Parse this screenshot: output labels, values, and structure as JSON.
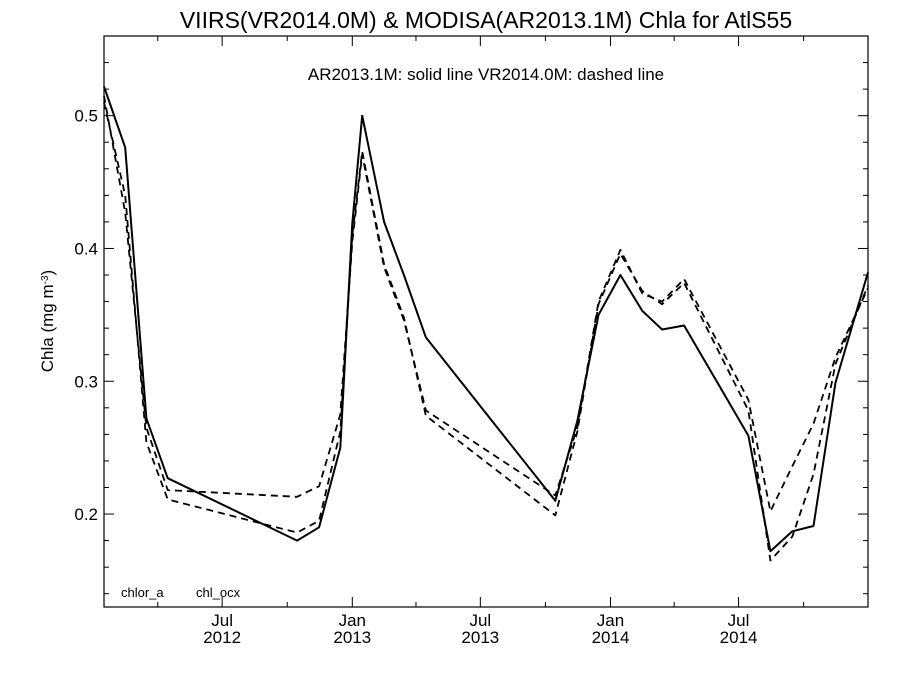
{
  "chart_data": {
    "type": "line",
    "title": "VIIRS(VR2014.0M) & MODISA(AR2013.1M)  Chla for AtlS55",
    "subtitle": "AR2013.1M: solid line   VR2014.0M: dashed line",
    "ylabel": "Chla (mg m",
    "ylabel_sup": "-3",
    "ylabel_close": ")",
    "xlim": [
      "2012-01-16",
      "2014-12-31"
    ],
    "ylim": [
      0.13,
      0.56
    ],
    "y_ticks": [
      0.2,
      0.3,
      0.4,
      0.5
    ],
    "y_tick_labels": [
      "0.2",
      "0.3",
      "0.4",
      "0.5"
    ],
    "x_major_ticks": [
      {
        "date": "2012-07-01",
        "month": "Jul",
        "year": "2012"
      },
      {
        "date": "2013-01-01",
        "month": "Jan",
        "year": "2013"
      },
      {
        "date": "2013-07-01",
        "month": "Jul",
        "year": "2013"
      },
      {
        "date": "2014-01-01",
        "month": "Jan",
        "year": "2014"
      },
      {
        "date": "2014-07-01",
        "month": "Jul",
        "year": "2014"
      }
    ],
    "x_minor_ticks": [
      "2012-04-01",
      "2012-10-01",
      "2013-04-01",
      "2013-10-01",
      "2014-04-01",
      "2014-10-01"
    ],
    "footnotes": [
      "chlor_a",
      "chl_ocx"
    ],
    "series": [
      {
        "line": "solid",
        "x": [
          "2012-01-16",
          "2012-02-15",
          "2012-03-16",
          "2012-04-15",
          "2012-10-15",
          "2012-11-15",
          "2012-12-15",
          "2013-01-01",
          "2013-01-15",
          "2013-02-15",
          "2013-03-15",
          "2013-04-15",
          "2013-10-15",
          "2013-11-15",
          "2013-12-15",
          "2014-01-15",
          "2014-02-15",
          "2014-03-15",
          "2014-04-15",
          "2014-07-15",
          "2014-08-15",
          "2014-09-15",
          "2014-10-15",
          "2014-11-15",
          "2014-12-31"
        ],
        "values": [
          0.522,
          0.476,
          0.272,
          0.227,
          0.18,
          0.19,
          0.25,
          0.419,
          0.5,
          0.42,
          0.38,
          0.333,
          0.21,
          0.27,
          0.35,
          0.38,
          0.353,
          0.339,
          0.342,
          0.259,
          0.172,
          0.187,
          0.191,
          0.299,
          0.382
        ]
      },
      {
        "line": "dashed",
        "x": [
          "2012-01-16",
          "2012-02-15",
          "2012-03-16",
          "2012-04-15",
          "2012-10-15",
          "2012-11-15",
          "2012-12-15",
          "2013-01-01",
          "2013-01-15",
          "2013-02-15",
          "2013-03-15",
          "2013-04-15",
          "2013-10-15",
          "2013-11-15",
          "2013-12-15",
          "2014-01-15",
          "2014-02-15",
          "2014-03-15",
          "2014-04-15",
          "2014-07-15",
          "2014-08-15",
          "2014-09-15",
          "2014-10-15",
          "2014-11-15",
          "2014-12-31"
        ],
        "values": [
          0.515,
          0.427,
          0.265,
          0.218,
          0.213,
          0.221,
          0.275,
          0.405,
          0.471,
          0.386,
          0.346,
          0.278,
          0.214,
          0.265,
          0.36,
          0.399,
          0.366,
          0.36,
          0.377,
          0.286,
          0.202,
          0.236,
          0.268,
          0.318,
          0.37
        ]
      },
      {
        "line": "dashed",
        "x": [
          "2012-01-16",
          "2012-02-15",
          "2012-03-16",
          "2012-04-15",
          "2012-10-15",
          "2012-11-15",
          "2012-12-15",
          "2013-01-01",
          "2013-01-15",
          "2013-02-15",
          "2013-03-15",
          "2013-04-15",
          "2013-10-15",
          "2013-11-15",
          "2013-12-15",
          "2014-01-15",
          "2014-02-15",
          "2014-03-15",
          "2014-04-15",
          "2014-07-15",
          "2014-08-15",
          "2014-09-15",
          "2014-10-15",
          "2014-11-15",
          "2014-12-31"
        ],
        "values": [
          0.51,
          0.44,
          0.254,
          0.211,
          0.186,
          0.195,
          0.262,
          0.41,
          0.473,
          0.388,
          0.348,
          0.274,
          0.199,
          0.262,
          0.358,
          0.396,
          0.368,
          0.358,
          0.374,
          0.278,
          0.165,
          0.183,
          0.23,
          0.313,
          0.372
        ]
      }
    ]
  }
}
